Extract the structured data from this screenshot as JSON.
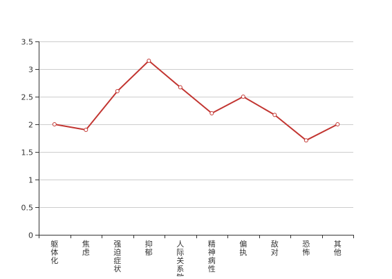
{
  "chart_data": {
    "type": "line",
    "categories": [
      "躯体化",
      "焦虑",
      "强迫症状",
      "抑郁",
      "人际关系敏感",
      "精神病性",
      "偏执",
      "敌对",
      "恐怖",
      "其他"
    ],
    "series": [
      {
        "values": [
          2.0,
          1.9,
          2.6,
          3.15,
          2.67,
          2.2,
          2.5,
          2.17,
          1.71,
          2.0
        ]
      }
    ],
    "y_ticks": [
      "0",
      "0.5",
      "1",
      "1.5",
      "2",
      "2.5",
      "3",
      "3.5"
    ],
    "ylim": [
      0,
      3.5
    ],
    "grid": true,
    "legend": "none",
    "colors": {
      "line": "#c23531",
      "marker_fill": "#ffffff",
      "grid": "#cccccc",
      "axis": "#333333"
    }
  }
}
